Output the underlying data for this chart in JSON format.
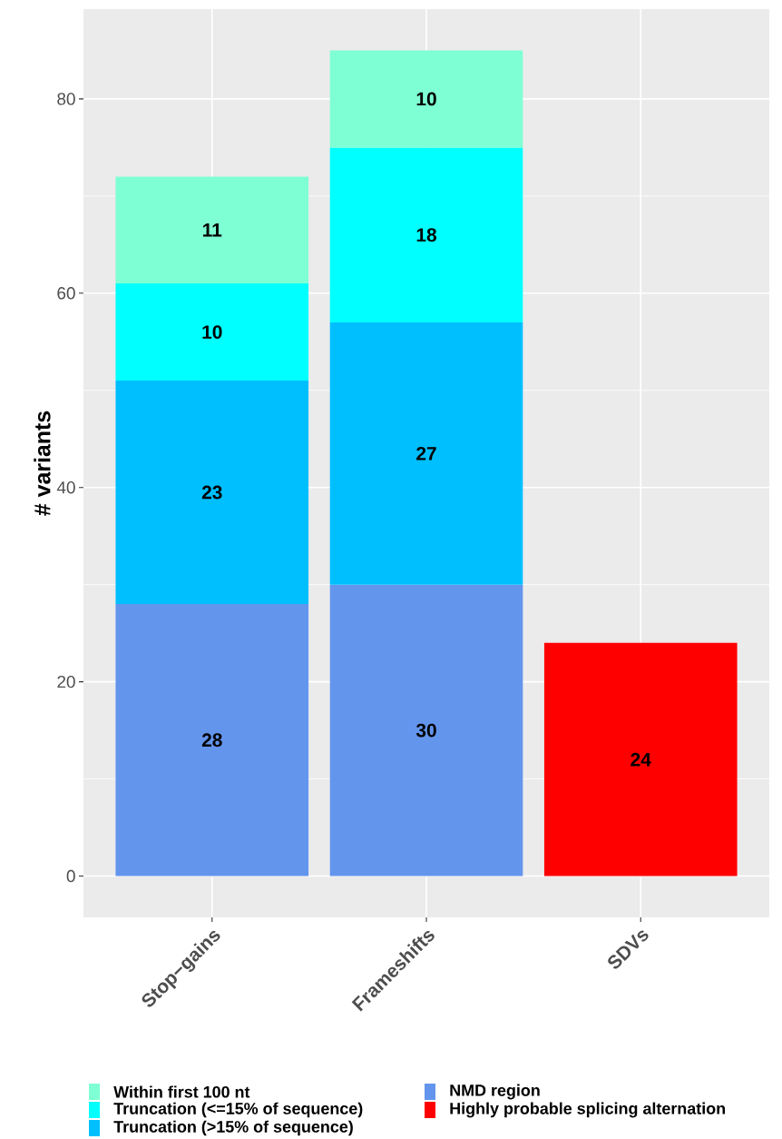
{
  "chart_data": {
    "type": "bar",
    "stacked": true,
    "ylabel": "# variants",
    "categories": [
      "Stop−gains",
      "Frameshifts",
      "SDVs"
    ],
    "series": [
      {
        "name": "Highly probable splicing alternation",
        "color": "#ff0000",
        "values": [
          null,
          null,
          24
        ]
      },
      {
        "name": "NMD region",
        "color": "#6495ed",
        "values": [
          28,
          30,
          null
        ]
      },
      {
        "name": "Truncation (>15% of sequence)",
        "color": "#00bfff",
        "values": [
          23,
          27,
          null
        ]
      },
      {
        "name": "Truncation (<=15% of sequence)",
        "color": "#00ffff",
        "values": [
          10,
          18,
          null
        ]
      },
      {
        "name": "Within first 100 nt",
        "color": "#7fffd4",
        "values": [
          11,
          10,
          null
        ]
      }
    ],
    "ylim": [
      -4.25,
      89.25
    ],
    "yticks": [
      0,
      20,
      40,
      60,
      80
    ],
    "grid": true,
    "legend": "bottom",
    "data_labels": true
  }
}
